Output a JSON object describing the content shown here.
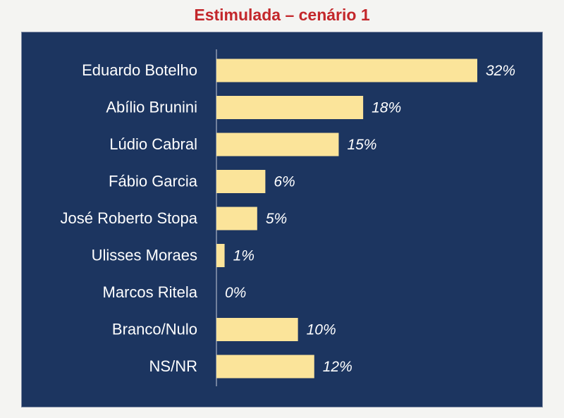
{
  "chart_data": {
    "type": "bar",
    "orientation": "horizontal",
    "title": "Estimulada – cenário 1",
    "categories": [
      "Eduardo Botelho",
      "Abílio Brunini",
      "Lúdio Cabral",
      "Fábio Garcia",
      "José Roberto Stopa",
      "Ulisses Moraes",
      "Marcos Ritela",
      "Branco/Nulo",
      "NS/NR"
    ],
    "values": [
      32,
      18,
      15,
      6,
      5,
      1,
      0,
      10,
      12
    ],
    "value_labels": [
      "32%",
      "18%",
      "15%",
      "6%",
      "5%",
      "1%",
      "0%",
      "10%",
      "12%"
    ],
    "unit": "%",
    "xlim": [
      0,
      32
    ],
    "grid": false,
    "legend": "none",
    "colors": {
      "bar": "#fbe49a",
      "panel": "#1c3560",
      "title": "#c3272b",
      "text": "#ffffff"
    }
  }
}
